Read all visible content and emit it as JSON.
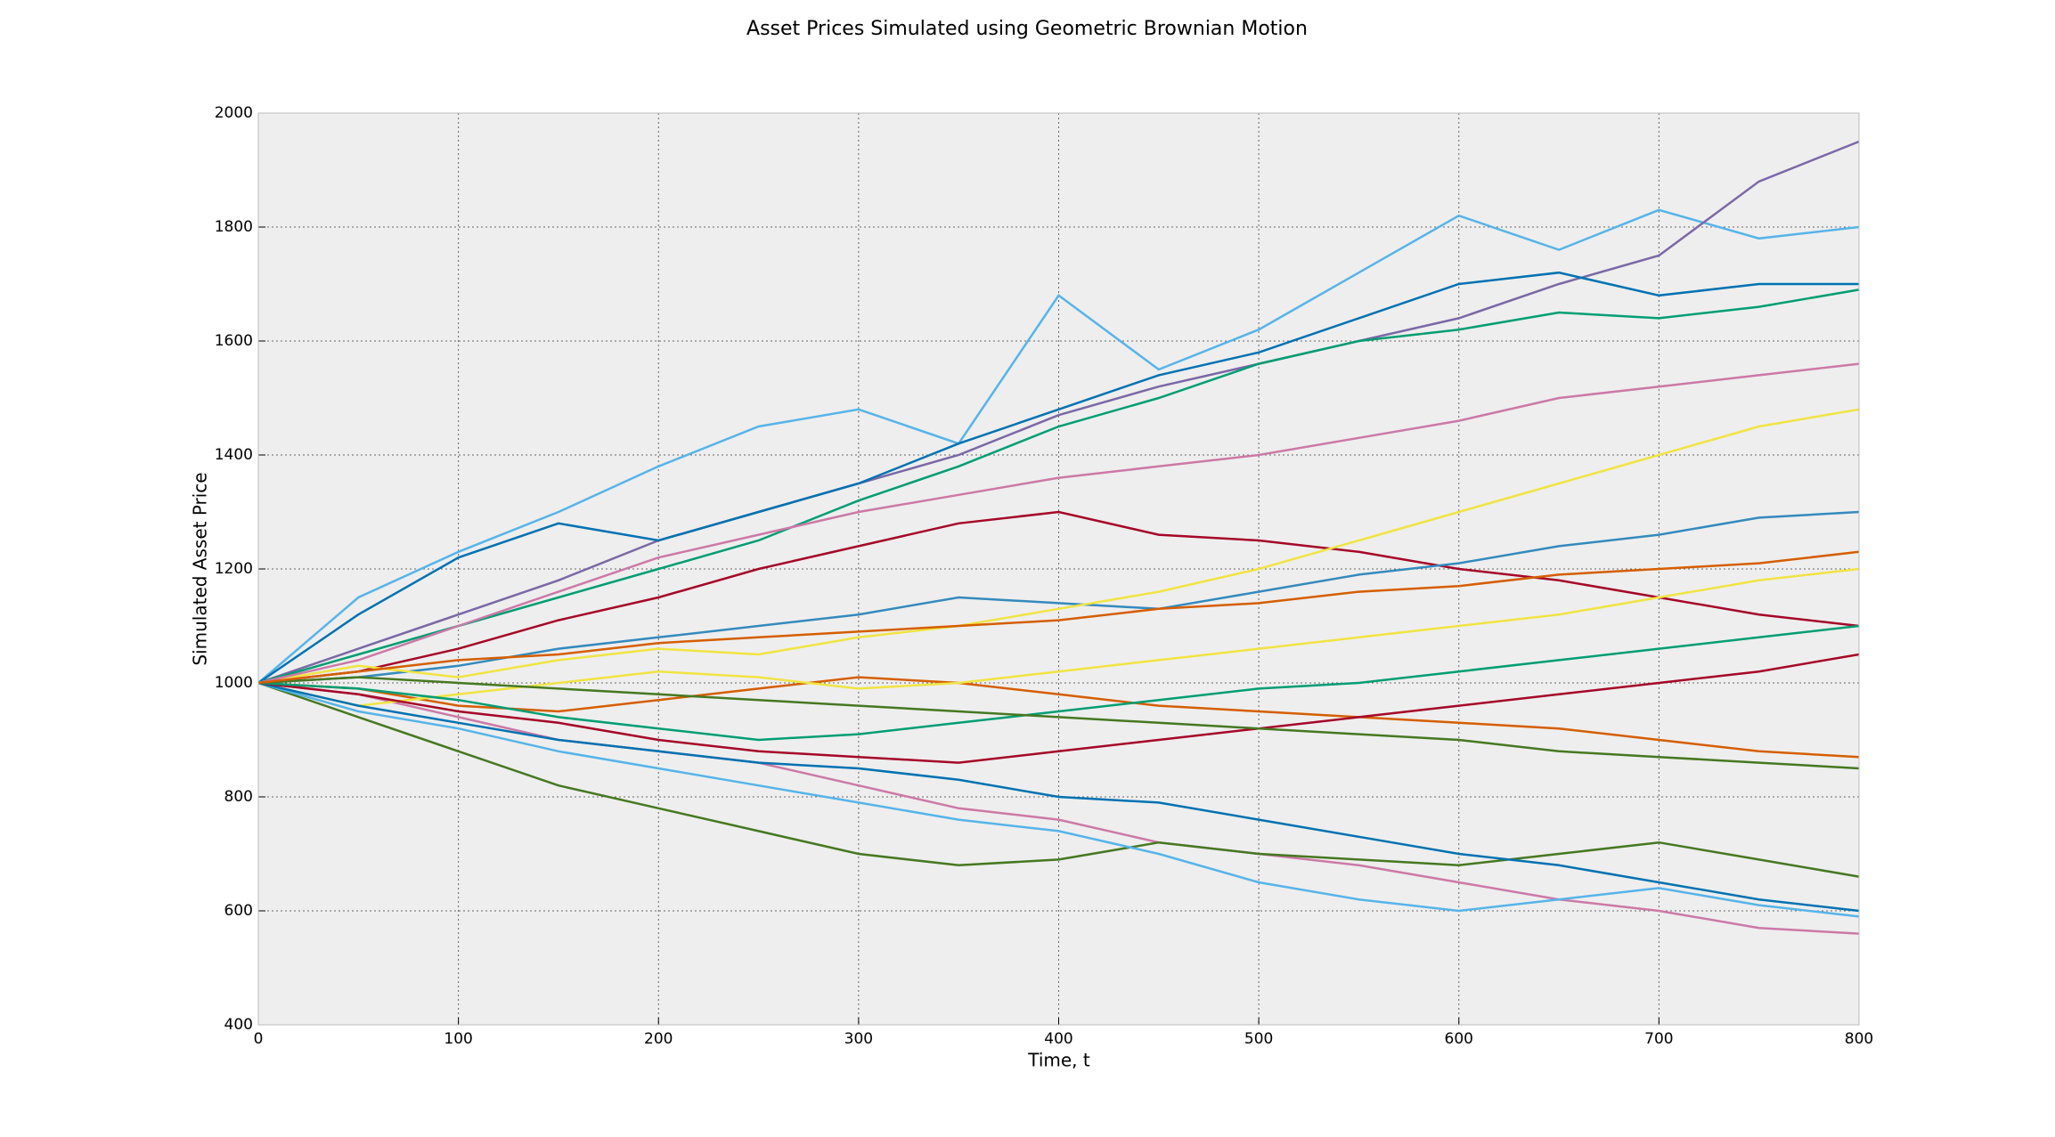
{
  "chart_data": {
    "type": "line",
    "title": "Asset Prices Simulated using Geometric Brownian Motion",
    "x_label": "Time, t",
    "y_label": "Simulated Asset Price",
    "x": [
      0,
      50,
      100,
      150,
      200,
      250,
      300,
      350,
      400,
      450,
      500,
      550,
      600,
      650,
      700,
      750,
      800
    ],
    "xlim": [
      0,
      800
    ],
    "xticks": [
      0,
      100,
      200,
      300,
      400,
      500,
      600,
      700,
      800
    ],
    "ylim": [
      400,
      2000
    ],
    "yticks": [
      400,
      600,
      800,
      1000,
      1200,
      1400,
      1600,
      1800,
      2000
    ],
    "grid": true,
    "background": "#eeeeee",
    "series": [
      {
        "color": "#56B4E9",
        "values": [
          1000,
          1150,
          1230,
          1300,
          1380,
          1450,
          1480,
          1420,
          1680,
          1550,
          1620,
          1720,
          1820,
          1760,
          1830,
          1780,
          1800
        ]
      },
      {
        "color": "#7A68A6",
        "values": [
          1000,
          1060,
          1120,
          1180,
          1250,
          1300,
          1350,
          1400,
          1470,
          1520,
          1560,
          1600,
          1640,
          1700,
          1750,
          1880,
          1950
        ]
      },
      {
        "color": "#0072B2",
        "values": [
          1000,
          1120,
          1220,
          1280,
          1250,
          1300,
          1350,
          1420,
          1480,
          1540,
          1580,
          1640,
          1700,
          1720,
          1680,
          1700,
          1700
        ]
      },
      {
        "color": "#CC79A7",
        "values": [
          1000,
          980,
          940,
          900,
          880,
          860,
          820,
          780,
          760,
          720,
          700,
          680,
          650,
          620,
          600,
          570,
          560
        ]
      },
      {
        "color": "#009E73",
        "values": [
          1000,
          1050,
          1100,
          1150,
          1200,
          1250,
          1320,
          1380,
          1450,
          1500,
          1560,
          1600,
          1620,
          1650,
          1640,
          1660,
          1690
        ]
      },
      {
        "color": "#A60628",
        "values": [
          1000,
          1020,
          1060,
          1110,
          1150,
          1200,
          1240,
          1280,
          1300,
          1260,
          1250,
          1230,
          1200,
          1180,
          1150,
          1120,
          1100
        ]
      },
      {
        "color": "#467821",
        "values": [
          1000,
          940,
          880,
          820,
          780,
          740,
          700,
          680,
          690,
          720,
          700,
          690,
          680,
          700,
          720,
          690,
          660
        ]
      },
      {
        "color": "#D55E00",
        "values": [
          1000,
          990,
          960,
          950,
          970,
          990,
          1010,
          1000,
          980,
          960,
          950,
          940,
          930,
          920,
          900,
          880,
          870
        ]
      },
      {
        "color": "#F0E442",
        "values": [
          1000,
          960,
          980,
          1000,
          1020,
          1010,
          990,
          1000,
          1020,
          1040,
          1060,
          1080,
          1100,
          1120,
          1150,
          1180,
          1200
        ]
      },
      {
        "color": "#348ABD",
        "values": [
          1000,
          1010,
          1030,
          1060,
          1080,
          1100,
          1120,
          1150,
          1140,
          1130,
          1160,
          1190,
          1210,
          1240,
          1260,
          1290,
          1300
        ]
      },
      {
        "color": "#56B4E9",
        "values": [
          1000,
          950,
          920,
          880,
          850,
          820,
          790,
          760,
          740,
          700,
          650,
          620,
          600,
          620,
          640,
          610,
          590
        ]
      },
      {
        "color": "#0072B2",
        "values": [
          1000,
          960,
          930,
          900,
          880,
          860,
          850,
          830,
          800,
          790,
          760,
          730,
          700,
          680,
          650,
          620,
          600
        ]
      },
      {
        "color": "#F0E442",
        "values": [
          1000,
          1030,
          1010,
          1040,
          1060,
          1050,
          1080,
          1100,
          1130,
          1160,
          1200,
          1250,
          1300,
          1350,
          1400,
          1450,
          1480
        ]
      },
      {
        "color": "#A60628",
        "values": [
          1000,
          980,
          950,
          930,
          900,
          880,
          870,
          860,
          880,
          900,
          920,
          940,
          960,
          980,
          1000,
          1020,
          1050
        ]
      },
      {
        "color": "#009E73",
        "values": [
          1000,
          990,
          970,
          940,
          920,
          900,
          910,
          930,
          950,
          970,
          990,
          1000,
          1020,
          1040,
          1060,
          1080,
          1100
        ]
      },
      {
        "color": "#CC79A7",
        "values": [
          1000,
          1040,
          1100,
          1160,
          1220,
          1260,
          1300,
          1330,
          1360,
          1380,
          1400,
          1430,
          1460,
          1500,
          1520,
          1540,
          1560
        ]
      },
      {
        "color": "#467821",
        "values": [
          1000,
          1010,
          1000,
          990,
          980,
          970,
          960,
          950,
          940,
          930,
          920,
          910,
          900,
          880,
          870,
          860,
          850
        ]
      },
      {
        "color": "#D55E00",
        "values": [
          1000,
          1020,
          1040,
          1050,
          1070,
          1080,
          1090,
          1100,
          1110,
          1130,
          1140,
          1160,
          1170,
          1190,
          1200,
          1210,
          1230
        ]
      }
    ]
  }
}
